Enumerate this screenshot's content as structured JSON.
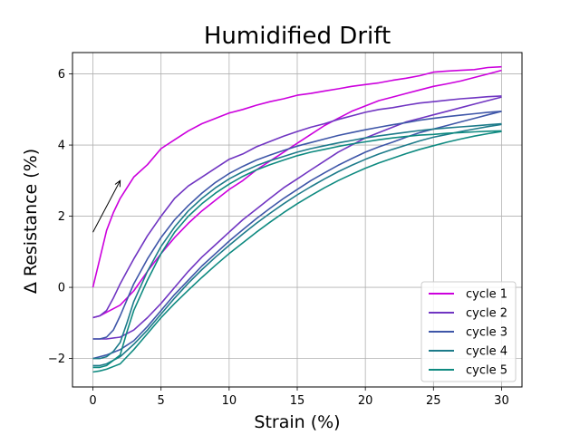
{
  "chart_data": {
    "type": "line",
    "title": "Humidified Drift",
    "xlabel": "Strain (%)",
    "ylabel": "Δ Resistance (%)",
    "xlim": [
      -1.5,
      31.5
    ],
    "ylim": [
      -2.8,
      6.6
    ],
    "xticks": [
      0,
      5,
      10,
      15,
      20,
      25,
      30
    ],
    "yticks": [
      -2,
      0,
      2,
      4,
      6
    ],
    "xtick_labels": [
      "0",
      "5",
      "10",
      "15",
      "20",
      "25",
      "30"
    ],
    "ytick_labels": [
      "−2",
      "0",
      "2",
      "4",
      "6"
    ],
    "grid": true,
    "legend_position": "lower-right",
    "annotation": {
      "type": "arrow",
      "from": [
        0,
        1.55
      ],
      "to": [
        2,
        3.0
      ]
    },
    "series": [
      {
        "name": "cycle 1",
        "color": "#cc00dd",
        "segments": [
          {
            "x": [
              0,
              0.5,
              1,
              1.5,
              2,
              2.5,
              3,
              4,
              5,
              6,
              7,
              8,
              9,
              10,
              11,
              12,
              13,
              14,
              15,
              16,
              17,
              18,
              19,
              20,
              21,
              22,
              23,
              24,
              25,
              26,
              27,
              28,
              29,
              30
            ],
            "y": [
              0,
              0.8,
              1.6,
              2.1,
              2.5,
              2.8,
              3.1,
              3.45,
              3.9,
              4.15,
              4.4,
              4.6,
              4.75,
              4.9,
              5.0,
              5.12,
              5.22,
              5.3,
              5.4,
              5.45,
              5.52,
              5.58,
              5.65,
              5.7,
              5.75,
              5.82,
              5.88,
              5.95,
              6.05,
              6.08,
              6.1,
              6.12,
              6.18,
              6.2
            ]
          },
          {
            "x": [
              30,
              29,
              28,
              27,
              26,
              25,
              24,
              23,
              22,
              21,
              20,
              19,
              18,
              17,
              16,
              15,
              14,
              13,
              12,
              11,
              10,
              9,
              8,
              7,
              6,
              5,
              4,
              3,
              2,
              1,
              0.5,
              0
            ],
            "y": [
              6.1,
              6.0,
              5.9,
              5.8,
              5.72,
              5.65,
              5.55,
              5.45,
              5.35,
              5.25,
              5.1,
              4.95,
              4.75,
              4.55,
              4.3,
              4.05,
              3.8,
              3.55,
              3.3,
              3.0,
              2.75,
              2.45,
              2.15,
              1.8,
              1.4,
              0.95,
              0.45,
              -0.1,
              -0.5,
              -0.7,
              -0.8,
              -0.85
            ]
          }
        ]
      },
      {
        "name": "cycle 2",
        "color": "#7035c2",
        "segments": [
          {
            "x": [
              0,
              0.5,
              1,
              1.5,
              2,
              2.5,
              3,
              4,
              5,
              6,
              7,
              8,
              9,
              10,
              11,
              12,
              13,
              14,
              15,
              16,
              17,
              18,
              19,
              20,
              21,
              22,
              23,
              24,
              25,
              26,
              27,
              28,
              29,
              30
            ],
            "y": [
              -0.85,
              -0.8,
              -0.65,
              -0.3,
              0.1,
              0.45,
              0.8,
              1.45,
              2.0,
              2.5,
              2.85,
              3.1,
              3.35,
              3.6,
              3.75,
              3.95,
              4.1,
              4.25,
              4.38,
              4.5,
              4.6,
              4.72,
              4.82,
              4.92,
              5.0,
              5.05,
              5.12,
              5.18,
              5.22,
              5.26,
              5.3,
              5.33,
              5.36,
              5.38
            ]
          },
          {
            "x": [
              30,
              29,
              28,
              27,
              26,
              25,
              24,
              23,
              22,
              21,
              20,
              19,
              18,
              17,
              16,
              15,
              14,
              13,
              12,
              11,
              10,
              9,
              8,
              7,
              6,
              5,
              4,
              3,
              2,
              1,
              0.5,
              0
            ],
            "y": [
              5.35,
              5.25,
              5.15,
              5.05,
              4.95,
              4.85,
              4.75,
              4.65,
              4.5,
              4.35,
              4.2,
              4.0,
              3.8,
              3.55,
              3.3,
              3.05,
              2.8,
              2.5,
              2.2,
              1.9,
              1.55,
              1.2,
              0.85,
              0.45,
              0.0,
              -0.45,
              -0.85,
              -1.2,
              -1.4,
              -1.45,
              -1.45,
              -1.45
            ]
          }
        ]
      },
      {
        "name": "cycle 3",
        "color": "#3e56a8",
        "segments": [
          {
            "x": [
              0,
              0.5,
              1,
              1.5,
              2,
              2.5,
              3,
              4,
              5,
              6,
              7,
              8,
              9,
              10,
              11,
              12,
              13,
              14,
              15,
              16,
              17,
              18,
              19,
              20,
              21,
              22,
              23,
              24,
              25,
              26,
              27,
              28,
              29,
              30
            ],
            "y": [
              -1.45,
              -1.45,
              -1.4,
              -1.2,
              -0.8,
              -0.35,
              0.1,
              0.8,
              1.4,
              1.9,
              2.3,
              2.65,
              2.95,
              3.2,
              3.4,
              3.58,
              3.72,
              3.85,
              3.97,
              4.07,
              4.17,
              4.27,
              4.35,
              4.43,
              4.5,
              4.57,
              4.63,
              4.7,
              4.75,
              4.8,
              4.84,
              4.88,
              4.92,
              4.95
            ]
          },
          {
            "x": [
              30,
              29,
              28,
              27,
              26,
              25,
              24,
              23,
              22,
              21,
              20,
              19,
              18,
              17,
              16,
              15,
              14,
              13,
              12,
              11,
              10,
              9,
              8,
              7,
              6,
              5,
              4,
              3,
              2,
              1,
              0.5,
              0
            ],
            "y": [
              4.95,
              4.85,
              4.75,
              4.65,
              4.55,
              4.45,
              4.35,
              4.22,
              4.08,
              3.95,
              3.8,
              3.62,
              3.43,
              3.22,
              3.0,
              2.75,
              2.5,
              2.22,
              1.93,
              1.62,
              1.3,
              0.95,
              0.6,
              0.2,
              -0.2,
              -0.65,
              -1.1,
              -1.5,
              -1.75,
              -1.9,
              -1.95,
              -2.0
            ]
          }
        ]
      },
      {
        "name": "cycle 4",
        "color": "#1d7b8a",
        "segments": [
          {
            "x": [
              0,
              0.5,
              1,
              1.5,
              2,
              2.5,
              3,
              4,
              5,
              6,
              7,
              8,
              9,
              10,
              11,
              12,
              13,
              14,
              15,
              16,
              17,
              18,
              19,
              20,
              21,
              22,
              23,
              24,
              25,
              26,
              27,
              28,
              29,
              30
            ],
            "y": [
              -2.0,
              -2.0,
              -1.95,
              -1.8,
              -1.55,
              -1.0,
              -0.4,
              0.45,
              1.15,
              1.7,
              2.15,
              2.5,
              2.8,
              3.05,
              3.25,
              3.42,
              3.56,
              3.68,
              3.8,
              3.9,
              3.98,
              4.06,
              4.13,
              4.2,
              4.26,
              4.31,
              4.36,
              4.41,
              4.45,
              4.48,
              4.51,
              4.54,
              4.57,
              4.6
            ]
          },
          {
            "x": [
              30,
              29,
              28,
              27,
              26,
              25,
              24,
              23,
              22,
              21,
              20,
              19,
              18,
              17,
              16,
              15,
              14,
              13,
              12,
              11,
              10,
              9,
              8,
              7,
              6,
              5,
              4,
              3,
              2,
              1,
              0.5,
              0
            ],
            "y": [
              4.58,
              4.52,
              4.45,
              4.38,
              4.3,
              4.22,
              4.12,
              4.0,
              3.88,
              3.75,
              3.6,
              3.43,
              3.25,
              3.05,
              2.83,
              2.6,
              2.35,
              2.08,
              1.8,
              1.5,
              1.18,
              0.85,
              0.5,
              0.12,
              -0.3,
              -0.75,
              -1.2,
              -1.6,
              -1.95,
              -2.15,
              -2.2,
              -2.2
            ]
          }
        ]
      },
      {
        "name": "cycle 5",
        "color": "#0e8a80",
        "segments": [
          {
            "x": [
              0,
              0.5,
              1,
              1.5,
              2,
              2.5,
              3,
              4,
              5,
              6,
              7,
              8,
              9,
              10,
              11,
              12,
              13,
              14,
              15,
              16,
              17,
              18,
              19,
              20,
              21,
              22,
              23,
              24,
              25,
              26,
              27,
              28,
              29,
              30
            ],
            "y": [
              -2.25,
              -2.25,
              -2.2,
              -2.05,
              -1.9,
              -1.25,
              -0.65,
              0.2,
              0.95,
              1.55,
              2.0,
              2.35,
              2.65,
              2.9,
              3.12,
              3.3,
              3.45,
              3.58,
              3.7,
              3.8,
              3.88,
              3.96,
              4.03,
              4.09,
              4.15,
              4.2,
              4.24,
              4.28,
              4.3,
              4.33,
              4.35,
              4.37,
              4.39,
              4.4
            ]
          },
          {
            "x": [
              30,
              29,
              28,
              27,
              26,
              25,
              24,
              23,
              22,
              21,
              20,
              19,
              18,
              17,
              16,
              15,
              14,
              13,
              12,
              11,
              10,
              9,
              8,
              7,
              6,
              5,
              4,
              3,
              2,
              1,
              0.5,
              0
            ],
            "y": [
              4.38,
              4.32,
              4.25,
              4.17,
              4.08,
              3.98,
              3.88,
              3.76,
              3.63,
              3.5,
              3.35,
              3.18,
              3.0,
              2.8,
              2.58,
              2.35,
              2.1,
              1.83,
              1.55,
              1.25,
              0.95,
              0.62,
              0.28,
              -0.08,
              -0.45,
              -0.85,
              -1.3,
              -1.75,
              -2.15,
              -2.3,
              -2.35,
              -2.38
            ]
          }
        ]
      }
    ]
  }
}
